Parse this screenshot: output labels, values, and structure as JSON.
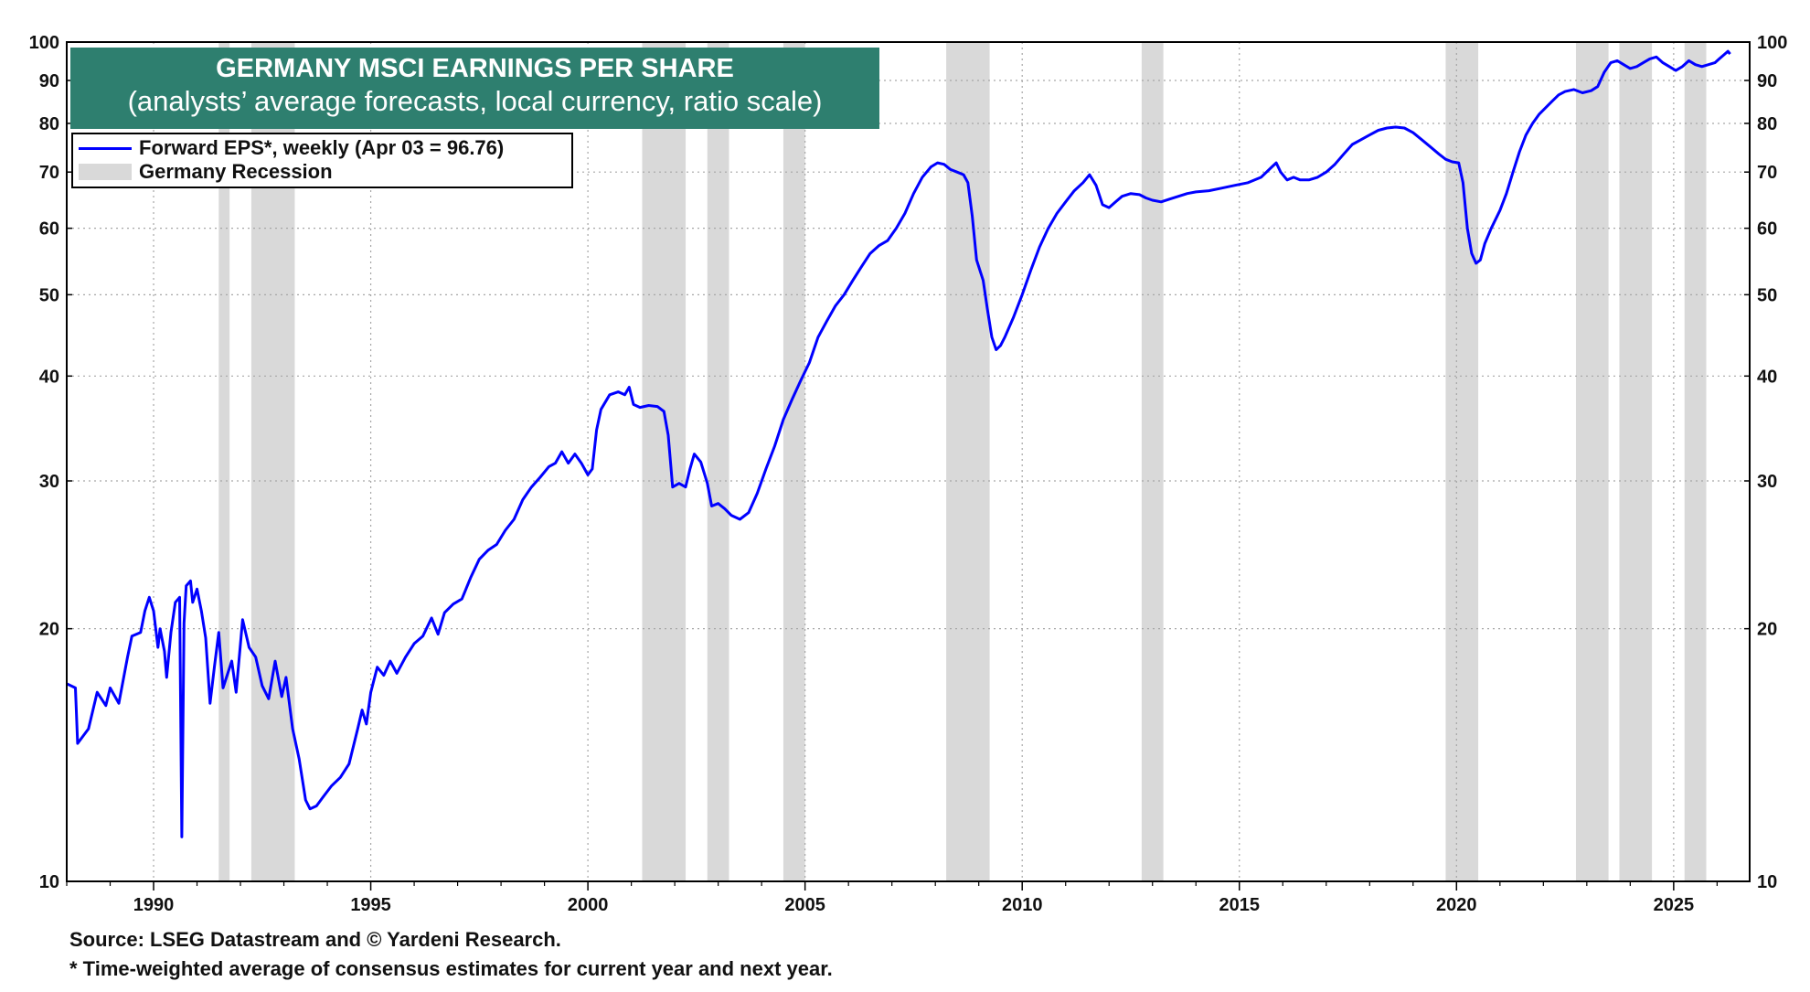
{
  "chart_data": {
    "type": "line",
    "title": "GERMANY MSCI EARNINGS PER SHARE",
    "subtitle": "(analysts’ average forecasts, local currency, ratio scale)",
    "yscale": "log",
    "ylim": [
      10,
      100
    ],
    "xlim": [
      1988.0,
      2026.75
    ],
    "y_ticks": [
      10,
      20,
      30,
      40,
      50,
      60,
      70,
      80,
      90,
      100
    ],
    "x_ticks": [
      1990,
      1995,
      2000,
      2005,
      2010,
      2015,
      2020,
      2025
    ],
    "grid": true,
    "legend_position": "top-left",
    "line_color": "#0000ff",
    "recession_color": "#d9d9d9",
    "series": [
      {
        "name": "Forward EPS*, weekly (Apr 03 = 96.76)",
        "points": [
          [
            1988.0,
            17.2
          ],
          [
            1988.2,
            17.0
          ],
          [
            1988.25,
            14.6
          ],
          [
            1988.5,
            15.2
          ],
          [
            1988.7,
            16.8
          ],
          [
            1988.9,
            16.2
          ],
          [
            1989.0,
            17.0
          ],
          [
            1989.2,
            16.3
          ],
          [
            1989.4,
            18.5
          ],
          [
            1989.5,
            19.6
          ],
          [
            1989.7,
            19.8
          ],
          [
            1989.8,
            21.0
          ],
          [
            1989.9,
            21.8
          ],
          [
            1990.0,
            21.0
          ],
          [
            1990.1,
            19.0
          ],
          [
            1990.15,
            20.0
          ],
          [
            1990.25,
            18.8
          ],
          [
            1990.3,
            17.5
          ],
          [
            1990.4,
            19.8
          ],
          [
            1990.5,
            21.5
          ],
          [
            1990.6,
            21.8
          ],
          [
            1990.65,
            11.3
          ],
          [
            1990.7,
            20.3
          ],
          [
            1990.75,
            22.5
          ],
          [
            1990.85,
            22.8
          ],
          [
            1990.9,
            21.5
          ],
          [
            1991.0,
            22.3
          ],
          [
            1991.1,
            21.0
          ],
          [
            1991.2,
            19.5
          ],
          [
            1991.3,
            16.3
          ],
          [
            1991.4,
            18.0
          ],
          [
            1991.5,
            19.8
          ],
          [
            1991.6,
            17.0
          ],
          [
            1991.8,
            18.3
          ],
          [
            1991.9,
            16.8
          ],
          [
            1992.05,
            20.5
          ],
          [
            1992.2,
            19.0
          ],
          [
            1992.35,
            18.5
          ],
          [
            1992.5,
            17.1
          ],
          [
            1992.65,
            16.5
          ],
          [
            1992.8,
            18.3
          ],
          [
            1992.95,
            16.6
          ],
          [
            1993.05,
            17.5
          ],
          [
            1993.2,
            15.2
          ],
          [
            1993.35,
            14.0
          ],
          [
            1993.5,
            12.5
          ],
          [
            1993.6,
            12.2
          ],
          [
            1993.75,
            12.3
          ],
          [
            1993.9,
            12.6
          ],
          [
            1994.1,
            13.0
          ],
          [
            1994.3,
            13.3
          ],
          [
            1994.5,
            13.8
          ],
          [
            1994.7,
            15.2
          ],
          [
            1994.8,
            16.0
          ],
          [
            1994.9,
            15.4
          ],
          [
            1995.0,
            16.8
          ],
          [
            1995.15,
            18.0
          ],
          [
            1995.3,
            17.6
          ],
          [
            1995.45,
            18.3
          ],
          [
            1995.6,
            17.7
          ],
          [
            1995.8,
            18.5
          ],
          [
            1996.0,
            19.2
          ],
          [
            1996.2,
            19.6
          ],
          [
            1996.4,
            20.6
          ],
          [
            1996.55,
            19.7
          ],
          [
            1996.7,
            20.9
          ],
          [
            1996.9,
            21.4
          ],
          [
            1997.1,
            21.7
          ],
          [
            1997.3,
            23.0
          ],
          [
            1997.5,
            24.2
          ],
          [
            1997.7,
            24.8
          ],
          [
            1997.9,
            25.2
          ],
          [
            1998.1,
            26.2
          ],
          [
            1998.3,
            27.0
          ],
          [
            1998.5,
            28.5
          ],
          [
            1998.7,
            29.5
          ],
          [
            1998.9,
            30.3
          ],
          [
            1999.1,
            31.2
          ],
          [
            1999.25,
            31.5
          ],
          [
            1999.4,
            32.5
          ],
          [
            1999.55,
            31.5
          ],
          [
            1999.7,
            32.3
          ],
          [
            1999.85,
            31.5
          ],
          [
            2000.0,
            30.5
          ],
          [
            2000.1,
            31.0
          ],
          [
            2000.2,
            34.5
          ],
          [
            2000.3,
            36.5
          ],
          [
            2000.5,
            38.0
          ],
          [
            2000.7,
            38.3
          ],
          [
            2000.85,
            38.0
          ],
          [
            2000.95,
            38.8
          ],
          [
            2001.05,
            37.0
          ],
          [
            2001.2,
            36.7
          ],
          [
            2001.4,
            36.9
          ],
          [
            2001.6,
            36.8
          ],
          [
            2001.75,
            36.3
          ],
          [
            2001.85,
            34.0
          ],
          [
            2001.95,
            29.5
          ],
          [
            2002.1,
            29.8
          ],
          [
            2002.25,
            29.5
          ],
          [
            2002.35,
            31.0
          ],
          [
            2002.45,
            32.3
          ],
          [
            2002.6,
            31.6
          ],
          [
            2002.75,
            29.8
          ],
          [
            2002.85,
            28.0
          ],
          [
            2003.0,
            28.2
          ],
          [
            2003.15,
            27.8
          ],
          [
            2003.3,
            27.3
          ],
          [
            2003.5,
            27.0
          ],
          [
            2003.7,
            27.5
          ],
          [
            2003.9,
            29.0
          ],
          [
            2004.1,
            31.0
          ],
          [
            2004.3,
            33.0
          ],
          [
            2004.5,
            35.5
          ],
          [
            2004.7,
            37.5
          ],
          [
            2004.9,
            39.5
          ],
          [
            2005.1,
            41.5
          ],
          [
            2005.3,
            44.5
          ],
          [
            2005.5,
            46.5
          ],
          [
            2005.7,
            48.5
          ],
          [
            2005.9,
            50.0
          ],
          [
            2006.1,
            52.0
          ],
          [
            2006.3,
            54.0
          ],
          [
            2006.5,
            56.0
          ],
          [
            2006.7,
            57.2
          ],
          [
            2006.9,
            58.0
          ],
          [
            2007.1,
            60.0
          ],
          [
            2007.3,
            62.5
          ],
          [
            2007.5,
            66.0
          ],
          [
            2007.7,
            69.0
          ],
          [
            2007.9,
            71.0
          ],
          [
            2008.05,
            71.8
          ],
          [
            2008.2,
            71.5
          ],
          [
            2008.35,
            70.5
          ],
          [
            2008.5,
            70.0
          ],
          [
            2008.65,
            69.5
          ],
          [
            2008.75,
            68.0
          ],
          [
            2008.85,
            62.0
          ],
          [
            2008.95,
            55.0
          ],
          [
            2009.1,
            52.0
          ],
          [
            2009.2,
            48.0
          ],
          [
            2009.3,
            44.5
          ],
          [
            2009.4,
            43.0
          ],
          [
            2009.5,
            43.5
          ],
          [
            2009.6,
            44.5
          ],
          [
            2009.8,
            47.0
          ],
          [
            2010.0,
            50.0
          ],
          [
            2010.2,
            53.5
          ],
          [
            2010.4,
            57.0
          ],
          [
            2010.6,
            60.0
          ],
          [
            2010.8,
            62.5
          ],
          [
            2011.0,
            64.5
          ],
          [
            2011.2,
            66.5
          ],
          [
            2011.4,
            68.0
          ],
          [
            2011.55,
            69.5
          ],
          [
            2011.7,
            67.5
          ],
          [
            2011.85,
            64.0
          ],
          [
            2012.0,
            63.5
          ],
          [
            2012.15,
            64.5
          ],
          [
            2012.3,
            65.5
          ],
          [
            2012.5,
            66.0
          ],
          [
            2012.7,
            65.8
          ],
          [
            2012.85,
            65.2
          ],
          [
            2013.0,
            64.8
          ],
          [
            2013.2,
            64.5
          ],
          [
            2013.4,
            65.0
          ],
          [
            2013.6,
            65.5
          ],
          [
            2013.8,
            66.0
          ],
          [
            2014.0,
            66.3
          ],
          [
            2014.3,
            66.5
          ],
          [
            2014.6,
            67.0
          ],
          [
            2014.9,
            67.5
          ],
          [
            2015.2,
            68.0
          ],
          [
            2015.5,
            69.0
          ],
          [
            2015.75,
            71.0
          ],
          [
            2015.85,
            71.8
          ],
          [
            2015.95,
            70.0
          ],
          [
            2016.1,
            68.5
          ],
          [
            2016.25,
            69.0
          ],
          [
            2016.4,
            68.5
          ],
          [
            2016.6,
            68.5
          ],
          [
            2016.8,
            69.0
          ],
          [
            2017.0,
            70.0
          ],
          [
            2017.2,
            71.5
          ],
          [
            2017.4,
            73.5
          ],
          [
            2017.6,
            75.5
          ],
          [
            2017.8,
            76.5
          ],
          [
            2018.0,
            77.5
          ],
          [
            2018.2,
            78.5
          ],
          [
            2018.4,
            79.0
          ],
          [
            2018.6,
            79.2
          ],
          [
            2018.8,
            79.0
          ],
          [
            2019.0,
            78.0
          ],
          [
            2019.2,
            76.5
          ],
          [
            2019.4,
            75.0
          ],
          [
            2019.6,
            73.5
          ],
          [
            2019.75,
            72.5
          ],
          [
            2019.9,
            72.0
          ],
          [
            2020.05,
            71.8
          ],
          [
            2020.15,
            68.0
          ],
          [
            2020.25,
            60.0
          ],
          [
            2020.35,
            56.0
          ],
          [
            2020.45,
            54.5
          ],
          [
            2020.55,
            55.0
          ],
          [
            2020.65,
            57.5
          ],
          [
            2020.8,
            60.0
          ],
          [
            2021.0,
            63.0
          ],
          [
            2021.15,
            66.0
          ],
          [
            2021.3,
            70.0
          ],
          [
            2021.45,
            74.0
          ],
          [
            2021.6,
            77.5
          ],
          [
            2021.75,
            80.0
          ],
          [
            2021.9,
            82.0
          ],
          [
            2022.05,
            83.5
          ],
          [
            2022.2,
            85.0
          ],
          [
            2022.35,
            86.5
          ],
          [
            2022.5,
            87.3
          ],
          [
            2022.7,
            87.8
          ],
          [
            2022.9,
            87.0
          ],
          [
            2023.1,
            87.5
          ],
          [
            2023.25,
            88.5
          ],
          [
            2023.4,
            92.0
          ],
          [
            2023.55,
            94.5
          ],
          [
            2023.7,
            95.0
          ],
          [
            2023.85,
            94.0
          ],
          [
            2024.0,
            93.0
          ],
          [
            2024.15,
            93.5
          ],
          [
            2024.3,
            94.5
          ],
          [
            2024.45,
            95.5
          ],
          [
            2024.6,
            96.0
          ],
          [
            2024.75,
            94.5
          ],
          [
            2024.9,
            93.5
          ],
          [
            2025.05,
            92.5
          ],
          [
            2025.2,
            93.5
          ],
          [
            2025.35,
            95.0
          ],
          [
            2025.5,
            94.0
          ],
          [
            2025.65,
            93.5
          ],
          [
            2025.8,
            94.0
          ],
          [
            2025.95,
            94.5
          ],
          [
            2026.05,
            95.5
          ],
          [
            2026.15,
            96.5
          ],
          [
            2026.25,
            97.5
          ],
          [
            2026.3,
            96.76
          ]
        ]
      }
    ],
    "recessions": [
      {
        "name": "Germany Recession",
        "start": 1991.5,
        "end": 1991.75
      },
      {
        "name": "Germany Recession",
        "start": 1992.25,
        "end": 1993.25
      },
      {
        "name": "Germany Recession",
        "start": 2001.25,
        "end": 2002.25
      },
      {
        "name": "Germany Recession",
        "start": 2002.75,
        "end": 2003.25
      },
      {
        "name": "Germany Recession",
        "start": 2004.5,
        "end": 2005.0
      },
      {
        "name": "Germany Recession",
        "start": 2008.25,
        "end": 2009.25
      },
      {
        "name": "Germany Recession",
        "start": 2012.75,
        "end": 2013.25
      },
      {
        "name": "Germany Recession",
        "start": 2019.75,
        "end": 2020.5
      },
      {
        "name": "Germany Recession",
        "start": 2022.75,
        "end": 2023.5
      },
      {
        "name": "Germany Recession",
        "start": 2023.75,
        "end": 2024.5
      },
      {
        "name": "Germany Recession",
        "start": 2025.25,
        "end": 2025.75
      }
    ]
  },
  "legend": {
    "series_label": "Forward EPS*, weekly (Apr 03 = 96.76)",
    "recession_label": "Germany Recession"
  },
  "footnotes": {
    "source": "Source: LSEG Datastream and © Yardeni Research.",
    "note": "* Time-weighted average of consensus estimates for current year and next year."
  }
}
